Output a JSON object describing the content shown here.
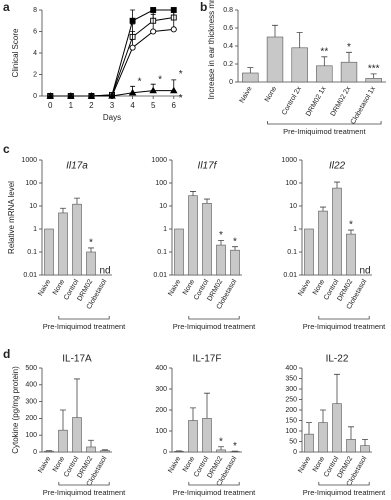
{
  "chart_data": [
    {
      "type": "line",
      "panel": "a",
      "ylabel": "Clinical Score",
      "xlabel": "Days",
      "x": [
        0,
        1,
        2,
        3,
        4,
        5,
        6
      ],
      "xlim": [
        -0.4,
        6.4
      ],
      "xticks": [
        0,
        1,
        2,
        3,
        4,
        5,
        6
      ],
      "ylim": [
        0,
        8
      ],
      "yticks": [
        0,
        2,
        4,
        6,
        8
      ],
      "series": [
        {
          "color": "#000",
          "marker": "square-filled",
          "values": [
            0,
            0,
            0,
            0.1,
            7,
            8,
            8
          ],
          "errors": [
            0,
            0,
            0,
            0,
            1,
            0,
            0
          ]
        },
        {
          "color": "#000",
          "marker": "square-open",
          "values": [
            0,
            0,
            0,
            0.1,
            5.5,
            7,
            7.3
          ],
          "errors": [
            0,
            0,
            0,
            0,
            1.2,
            1,
            0.8
          ]
        },
        {
          "color": "#000",
          "marker": "circle-open",
          "values": [
            0,
            0,
            0,
            0,
            4.5,
            6,
            6.2
          ],
          "errors": [
            0,
            0,
            0,
            0,
            1.5,
            1.6,
            1.8
          ]
        },
        {
          "color": "#000",
          "marker": "triangle-filled",
          "values": [
            0,
            0,
            0,
            0,
            0.3,
            0.5,
            0.5
          ],
          "errors": [
            0,
            0,
            0,
            0,
            0.6,
            0.6,
            1
          ]
        }
      ],
      "annotations": [
        {
          "text": "*",
          "x": 4,
          "y": 1.3
        },
        {
          "text": "*",
          "x": 5,
          "y": 1.5
        },
        {
          "text": "*",
          "x": 6,
          "y": 2
        },
        {
          "text": "*",
          "x": 6,
          "y": -0.2
        }
      ]
    },
    {
      "type": "bar",
      "panel": "b",
      "ylabel": "Increase in ear thickness mm)",
      "group_label": "Pre-Imiquimod treatment",
      "categories": [
        "Naive",
        "None",
        "Control 2x",
        "DRM02 1x",
        "DRM02 2x",
        "Clobetasol 1x"
      ],
      "values": [
        0.1,
        0.5,
        0.38,
        0.18,
        0.22,
        0.04
      ],
      "errors": [
        0.06,
        0.13,
        0.17,
        0.1,
        0.11,
        0.05
      ],
      "ylim": [
        0,
        0.8
      ],
      "yticks": [
        0,
        0.2,
        0.4,
        0.6,
        0.8
      ],
      "color": "#c8c8c8",
      "annotations": [
        {
          "text": "**",
          "index": 3
        },
        {
          "text": "*",
          "index": 4
        },
        {
          "text": "***",
          "index": 5
        }
      ]
    },
    {
      "type": "bar",
      "panel": "c",
      "title": "Il17a",
      "ylabel": "Relative mRNA level",
      "group_label": "Pre-Imiquimod treatment",
      "log": true,
      "categories": [
        "Naive",
        "None",
        "Control",
        "DRM02",
        "Clobetasol"
      ],
      "values": [
        1,
        5,
        12,
        0.1,
        null
      ],
      "errors": [
        0,
        3,
        10,
        0.05,
        null
      ],
      "ylim": [
        0.01,
        1000
      ],
      "yticks": [
        0.01,
        0.1,
        1,
        10,
        100,
        1000
      ],
      "color": "#c8c8c8",
      "annotations": [
        {
          "text": "*",
          "index": 3
        },
        {
          "text": "nd",
          "index": 4
        }
      ]
    },
    {
      "type": "bar",
      "title": "Il17f",
      "group_label": "Pre-Imiquimod treatment",
      "log": true,
      "categories": [
        "Naive",
        "None",
        "Control",
        "DRM02",
        "Clobetasol"
      ],
      "values": [
        1,
        28,
        13,
        0.2,
        0.12
      ],
      "errors": [
        0,
        15,
        7,
        0.12,
        0.05
      ],
      "ylim": [
        0.01,
        1000
      ],
      "yticks": [
        0.01,
        0.1,
        1,
        10,
        100,
        1000
      ],
      "color": "#c8c8c8",
      "annotations": [
        {
          "text": "*",
          "index": 3
        },
        {
          "text": "*",
          "index": 4
        }
      ]
    },
    {
      "type": "bar",
      "title": "Il22",
      "group_label": "Pre-Imiquimod treatment",
      "log": true,
      "categories": [
        "Naive",
        "None",
        "Control",
        "DRM02",
        "Clobetasol"
      ],
      "values": [
        1,
        6,
        60,
        0.6,
        null
      ],
      "errors": [
        0,
        3,
        50,
        0.3,
        null
      ],
      "ylim": [
        0.01,
        1000
      ],
      "yticks": [
        0.01,
        0.1,
        1,
        10,
        100,
        1000
      ],
      "color": "#c8c8c8",
      "annotations": [
        {
          "text": "*",
          "index": 3
        },
        {
          "text": "nd",
          "index": 4
        }
      ]
    },
    {
      "type": "bar",
      "panel": "d",
      "title": "IL-17A",
      "ylabel": "Cytokine (pg/mg protein)",
      "group_label": "Pre-Imiquimod treatment",
      "categories": [
        "Naive",
        "None",
        "Control",
        "DRM02",
        "Clobetasol"
      ],
      "values": [
        5,
        130,
        205,
        30,
        8
      ],
      "errors": [
        3,
        120,
        230,
        40,
        5
      ],
      "ylim": [
        0,
        500
      ],
      "yticks": [
        0,
        100,
        200,
        300,
        400,
        500
      ],
      "color": "#c8c8c8"
    },
    {
      "type": "bar",
      "title": "IL-17F",
      "group_label": "Pre-Imiquimod treatment",
      "categories": [
        "Naive",
        "None",
        "Control",
        "DRM02",
        "Clobetasol"
      ],
      "values": [
        3,
        150,
        160,
        10,
        2
      ],
      "errors": [
        2,
        60,
        120,
        15,
        2
      ],
      "ylim": [
        0,
        400
      ],
      "yticks": [
        0,
        100,
        200,
        300,
        400
      ],
      "color": "#c8c8c8",
      "annotations": [
        {
          "text": "*",
          "index": 3
        },
        {
          "text": "*",
          "index": 4
        }
      ]
    },
    {
      "type": "bar",
      "title": "IL-22",
      "group_label": "Pre-Imiquimod treatment",
      "categories": [
        "Naive",
        "None",
        "Control",
        "DRM02",
        "Clobetasol"
      ],
      "values": [
        85,
        140,
        230,
        60,
        30
      ],
      "errors": [
        55,
        60,
        140,
        60,
        30
      ],
      "ylim": [
        0,
        400
      ],
      "yticks": [
        0,
        50,
        100,
        150,
        200,
        250,
        300,
        350,
        400
      ],
      "color": "#c8c8c8"
    }
  ]
}
